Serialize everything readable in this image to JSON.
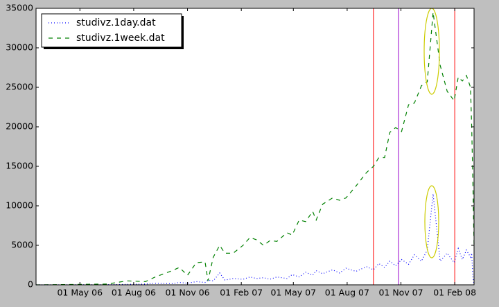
{
  "chart_data": {
    "type": "line",
    "x": [
      "2006-02-15",
      "2006-06-16",
      "2006-07-21",
      "2006-08-21",
      "2006-09-07",
      "2006-10-06",
      "2006-10-18",
      "2006-11-01",
      "2006-11-16",
      "2006-12-01",
      "2006-12-06",
      "2006-12-15",
      "2006-12-26",
      "2007-01-04",
      "2007-01-18",
      "2007-02-04",
      "2007-02-16",
      "2007-02-27",
      "2007-03-11",
      "2007-03-22",
      "2007-04-03",
      "2007-04-20",
      "2007-04-29",
      "2007-05-11",
      "2007-05-22",
      "2007-06-03",
      "2007-06-09",
      "2007-06-20",
      "2007-07-07",
      "2007-07-19",
      "2007-07-30",
      "2007-08-16",
      "2007-09-03",
      "2007-09-15",
      "2007-09-24",
      "2007-10-04",
      "2007-10-13",
      "2007-10-23",
      "2007-11-02",
      "2007-11-14",
      "2007-11-24",
      "2007-12-06",
      "2007-12-16",
      "2007-12-26",
      "2008-01-07",
      "2008-01-19",
      "2008-01-31",
      "2008-02-07",
      "2008-02-14",
      "2008-02-21",
      "2008-02-28",
      "2008-03-01",
      "2008-03-03",
      "2008-03-05"
    ],
    "series": [
      {
        "name": "studivz.1day.dat",
        "color": "#0000ff",
        "dash": "dotted",
        "values": [
          0,
          20,
          60,
          100,
          200,
          150,
          300,
          200,
          400,
          300,
          600,
          500,
          1500,
          600,
          800,
          700,
          1000,
          800,
          900,
          700,
          1000,
          800,
          1300,
          1000,
          1600,
          1200,
          1800,
          1400,
          1900,
          1500,
          2100,
          1700,
          2300,
          1900,
          2700,
          2200,
          3000,
          2400,
          3200,
          2600,
          3800,
          3000,
          4400,
          11500,
          3000,
          4000,
          2800,
          4600,
          3200,
          4400,
          3500,
          4000,
          1000,
          0
        ]
      },
      {
        "name": "studivz.1week.dat",
        "color": "#008000",
        "dash": "dashed",
        "values": [
          0,
          100,
          500,
          400,
          1000,
          1800,
          2200,
          1200,
          2800,
          2900,
          500,
          3500,
          5000,
          4000,
          4000,
          5000,
          6000,
          5700,
          5000,
          5600,
          5500,
          6600,
          6300,
          8200,
          8000,
          9300,
          8200,
          10200,
          11000,
          10700,
          11000,
          12500,
          14200,
          15000,
          16100,
          16100,
          19300,
          19900,
          19400,
          22800,
          23000,
          25200,
          25700,
          34500,
          27800,
          24500,
          23300,
          26300,
          25800,
          26500,
          25000,
          20000,
          13000,
          5000
        ]
      }
    ],
    "xlim": [
      "2006-02-15",
      "2008-03-05"
    ],
    "xticks": [
      {
        "value": "2006-05-01",
        "label": "01 May 06"
      },
      {
        "value": "2006-08-01",
        "label": "01 Aug 06"
      },
      {
        "value": "2006-11-01",
        "label": "01 Nov 06"
      },
      {
        "value": "2007-02-01",
        "label": "01 Feb 07"
      },
      {
        "value": "2007-05-01",
        "label": "01 May 07"
      },
      {
        "value": "2007-08-01",
        "label": "01 Aug 07"
      },
      {
        "value": "2007-11-01",
        "label": "01 Nov 07"
      },
      {
        "value": "2008-02-01",
        "label": "01 Feb 08"
      }
    ],
    "ylim": [
      0,
      35000
    ],
    "yticks": [
      0,
      5000,
      10000,
      15000,
      20000,
      25000,
      30000,
      35000
    ],
    "vlines": [
      {
        "x": "2007-09-15",
        "color": "#ff0000"
      },
      {
        "x": "2007-10-28",
        "color": "#9900cc"
      },
      {
        "x": "2008-02-01",
        "color": "#ff0000"
      }
    ],
    "legend": "upper left"
  }
}
